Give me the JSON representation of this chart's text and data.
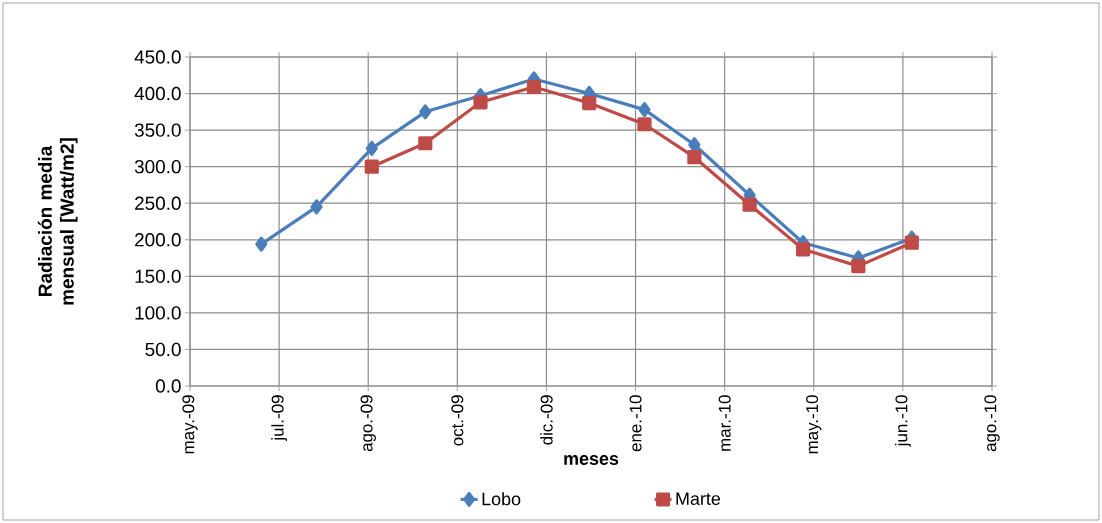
{
  "chart_data": {
    "type": "line",
    "xlabel": "meses",
    "ylabel": "Radiación media mensual [Watt/m2]",
    "x": [
      "2009-07-01",
      "2009-08-01",
      "2009-09-01",
      "2009-10-01",
      "2009-11-01",
      "2009-12-01",
      "2010-01-01",
      "2010-02-01",
      "2010-03-01",
      "2010-04-01",
      "2010-05-01",
      "2010-06-01",
      "2010-07-01"
    ],
    "series": [
      {
        "name": "Lobo",
        "color": "#4a7ebb",
        "marker": "diamond",
        "values": [
          194,
          245,
          325,
          375,
          397,
          420,
          400,
          378,
          330,
          261,
          196,
          175,
          202
        ]
      },
      {
        "name": "Marte",
        "color": "#be4b48",
        "marker": "square",
        "values": [
          null,
          null,
          300,
          332,
          388,
          409,
          387,
          358,
          313,
          248,
          187,
          164,
          196
        ]
      }
    ],
    "xlim": [
      "2009-05-22",
      "2010-08-15"
    ],
    "xticks": [
      {
        "value": "2009-05-22",
        "label": "may.-09"
      },
      {
        "value": "2009-07-11",
        "label": "jul.-09"
      },
      {
        "value": "2009-08-30",
        "label": "ago.-09"
      },
      {
        "value": "2009-10-19",
        "label": "oct.-09"
      },
      {
        "value": "2009-12-08",
        "label": "dic.-09"
      },
      {
        "value": "2010-01-27",
        "label": "ene.-10"
      },
      {
        "value": "2010-03-18",
        "label": "mar.-10"
      },
      {
        "value": "2010-05-07",
        "label": "may.-10"
      },
      {
        "value": "2010-06-26",
        "label": "jun.-10"
      },
      {
        "value": "2010-08-15",
        "label": "ago.-10"
      }
    ],
    "ylim": [
      0,
      450
    ],
    "yticks": [
      {
        "value": 0,
        "label": "0.0"
      },
      {
        "value": 50,
        "label": "50.0"
      },
      {
        "value": 100,
        "label": "100.0"
      },
      {
        "value": 150,
        "label": "150.0"
      },
      {
        "value": 200,
        "label": "200.0"
      },
      {
        "value": 250,
        "label": "250.0"
      },
      {
        "value": 300,
        "label": "300.0"
      },
      {
        "value": 350,
        "label": "350.0"
      },
      {
        "value": 400,
        "label": "400.0"
      },
      {
        "value": 450,
        "label": "450.0"
      }
    ],
    "grid": true,
    "legend": "bottom",
    "line_style": "solid"
  }
}
